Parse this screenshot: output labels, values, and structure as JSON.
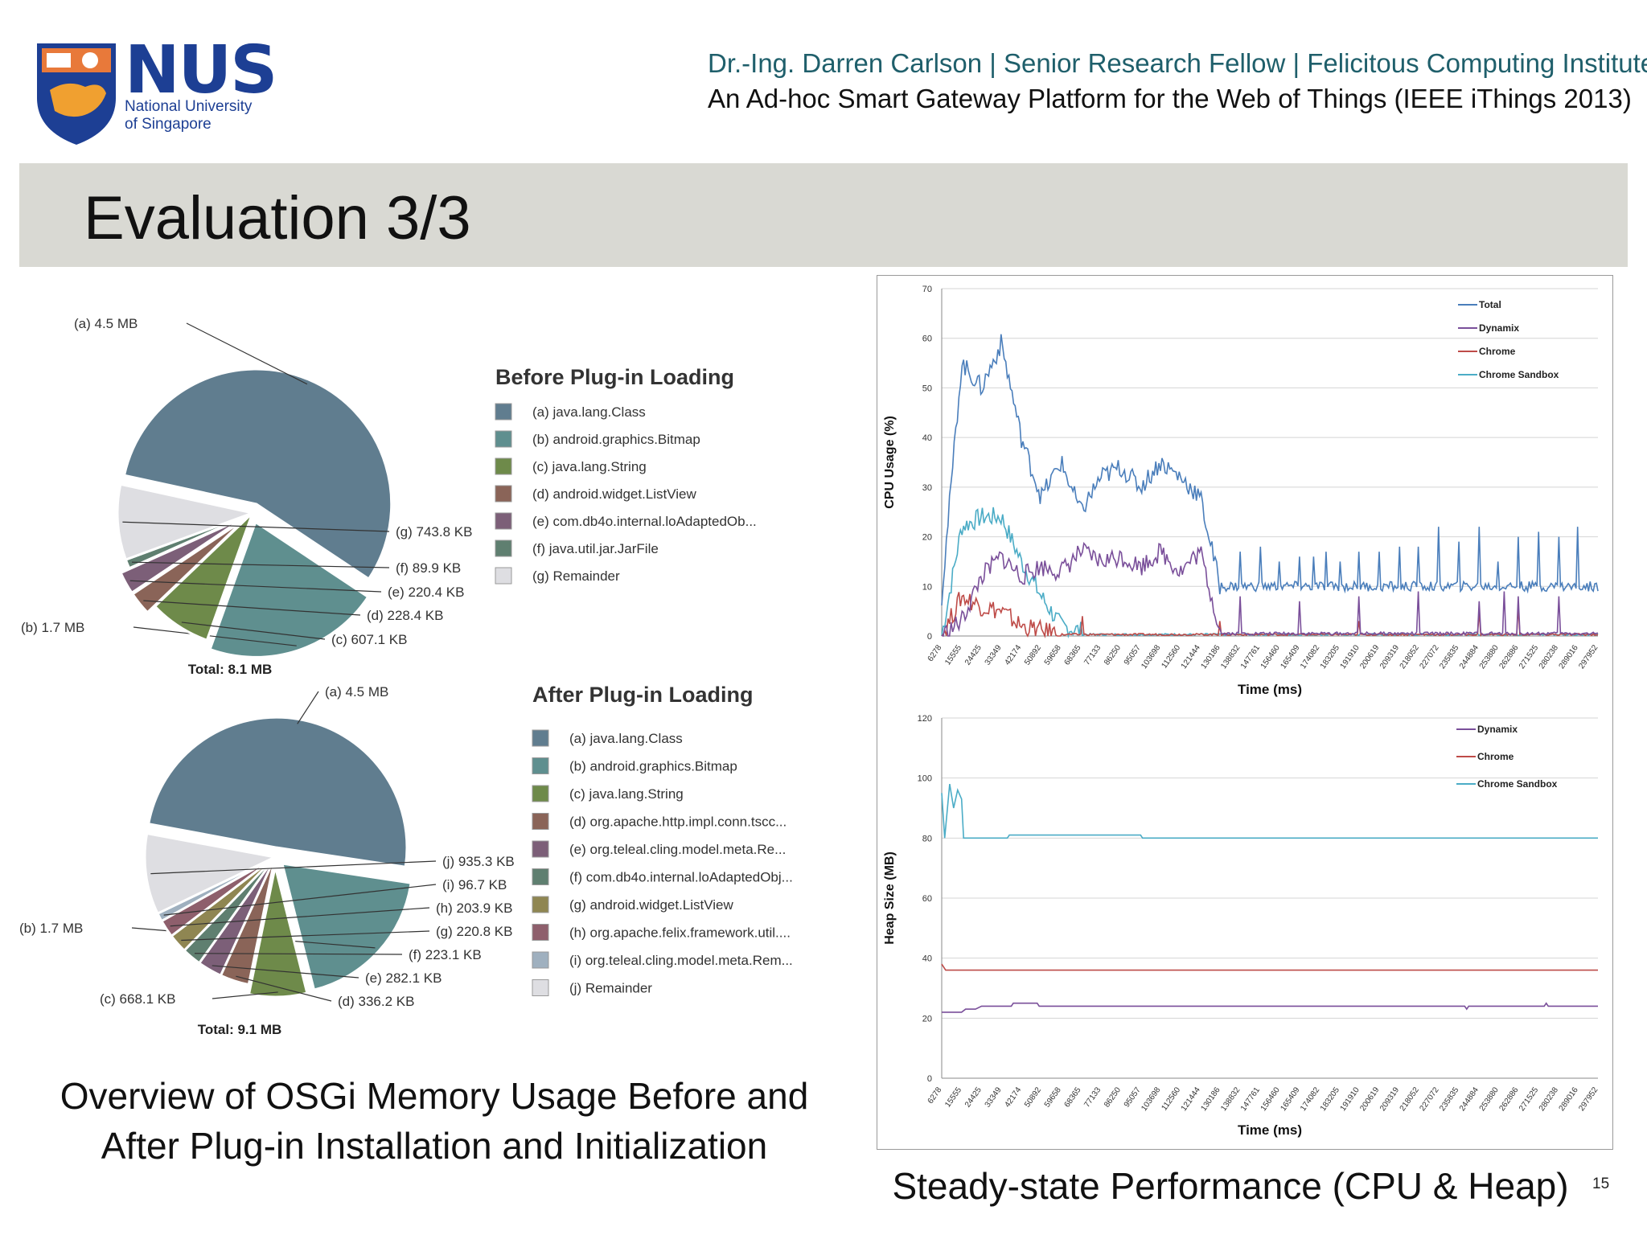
{
  "logo": {
    "short": "NUS",
    "line1": "National University",
    "line2": "of Singapore"
  },
  "header": {
    "line1": "Dr.-Ing. Darren Carlson | Senior Research Fellow | Felicitous Computing Institute",
    "line2": "An Ad-hoc Smart Gateway Platform  for the Web of Things (IEEE iThings 2013)"
  },
  "slide": {
    "title": "Evaluation 3/3",
    "page": "15"
  },
  "captions": {
    "left_line1": "Overview of OSGi Memory Usage Before and",
    "left_line2": "After Plug-in Installation and Initialization",
    "right": "Steady-state Performance (CPU & Heap)"
  },
  "colors": {
    "slice_a": "#607d8f",
    "slice_b": "#5f8f8f",
    "slice_c": "#6e8a4a",
    "slice_d": "#8a6458",
    "slice_e": "#7c5f78",
    "slice_f": "#5f7f70",
    "slice_g_after": "#8f8652",
    "slice_h": "#8e5f6c",
    "slice_i": "#9fb0bf",
    "slice_remainder": "#dedee2",
    "total": "#4a7ebb",
    "dynamix": "#7a4f9a",
    "chrome": "#be4b48",
    "chrome_sandbox": "#4bacc6",
    "title_band": "#d9d9d3",
    "nus_blue": "#1d3f94"
  },
  "chart_data": [
    {
      "type": "pie",
      "title": "Before Plug-in Loading",
      "total_label": "Total: 8.1 MB",
      "legend_labels": [
        "(a)  java.lang.Class",
        "(b)  android.graphics.Bitmap",
        "(c)  java.lang.String",
        "(d)  android.widget.ListView",
        "(e)  com.db4o.internal.loAdaptedOb...",
        "(f)  java.util.jar.JarFile",
        "(g)  Remainder"
      ],
      "slice_labels": [
        "(a)  4.5 MB",
        "(b)  1.7 MB",
        "(c)  607.1 KB",
        "(d)  228.4 KB",
        "(e)  220.4 KB",
        "(f)  89.9 KB",
        "(g)  743.8 KB"
      ],
      "values_kb": [
        4608,
        1741,
        607.1,
        228.4,
        220.4,
        89.9,
        743.8
      ]
    },
    {
      "type": "pie",
      "title": "After Plug-in Loading",
      "total_label": "Total: 9.1 MB",
      "legend_labels": [
        "(a)  java.lang.Class",
        "(b)  android.graphics.Bitmap",
        "(c)  java.lang.String",
        "(d)  org.apache.http.impl.conn.tscc...",
        "(e)  org.teleal.cling.model.meta.Re...",
        "(f)  com.db4o.internal.loAdaptedObj...",
        "(g)  android.widget.ListView",
        "(h)  org.apache.felix.framework.util....",
        "(i)  org.teleal.cling.model.meta.Rem...",
        "(j)  Remainder"
      ],
      "slice_labels": [
        "(a)  4.5 MB",
        "(b)  1.7 MB",
        "(c)  668.1 KB",
        "(d)  336.2 KB",
        "(e)  282.1 KB",
        "(f)  223.1 KB",
        "(g)  220.8 KB",
        "(h)  203.9 KB",
        "(i)  96.7 KB",
        "(j)  935.3 KB"
      ],
      "values_kb": [
        4608,
        1741,
        668.1,
        336.2,
        282.1,
        223.1,
        220.8,
        203.9,
        96.7,
        935.3
      ]
    },
    {
      "type": "line",
      "xlabel": "Time (ms)",
      "ylabel": "CPU Usage (%)",
      "ylim": [
        0,
        70
      ],
      "yticks": [
        0,
        10,
        20,
        30,
        40,
        50,
        60,
        70
      ],
      "x_ticks": [
        "6278",
        "15555",
        "24425",
        "33349",
        "42174",
        "50892",
        "59658",
        "68365",
        "77133",
        "86250",
        "95057",
        "103698",
        "112560",
        "121444",
        "130186",
        "138832",
        "147761",
        "156460",
        "165409",
        "174082",
        "183205",
        "191910",
        "200619",
        "209319",
        "218052",
        "227072",
        "235835",
        "244884",
        "253880",
        "262886",
        "271525",
        "280238",
        "289016",
        "297952"
      ],
      "grid": true,
      "legend_position": "top-right",
      "series": [
        {
          "name": "Total",
          "baseline": 10,
          "noise": 1,
          "initial": [
            [
              0,
              8
            ],
            [
              1,
              55
            ],
            [
              2,
              50
            ],
            [
              3,
              59
            ],
            [
              4,
              40
            ],
            [
              5,
              28
            ],
            [
              6,
              35
            ],
            [
              7,
              25
            ],
            [
              8,
              32
            ],
            [
              9,
              34
            ],
            [
              10,
              30
            ],
            [
              11,
              35
            ],
            [
              12,
              32
            ],
            [
              13,
              28
            ],
            [
              14,
              10
            ]
          ],
          "spikes": [
            [
              2.1,
              19
            ],
            [
              3.1,
              22
            ],
            [
              4.0,
              21
            ],
            [
              5.1,
              16
            ],
            [
              6.1,
              20
            ],
            [
              7.0,
              20
            ],
            [
              8.0,
              18
            ],
            [
              9.1,
              22
            ],
            [
              10.0,
              18
            ],
            [
              11.1,
              18
            ],
            [
              12.0,
              18
            ],
            [
              13.0,
              22
            ],
            [
              14.0,
              18
            ],
            [
              15.0,
              17
            ],
            [
              16.0,
              18
            ],
            [
              17.0,
              15
            ],
            [
              18.0,
              16
            ],
            [
              18.7,
              16
            ],
            [
              19.3,
              17
            ],
            [
              20.0,
              15
            ],
            [
              21.0,
              17
            ],
            [
              22.0,
              17
            ],
            [
              23.0,
              18
            ],
            [
              24.0,
              18
            ],
            [
              25.0,
              22
            ],
            [
              26.0,
              19
            ],
            [
              27.0,
              22
            ],
            [
              28.0,
              15
            ],
            [
              29.0,
              20
            ],
            [
              30.0,
              21
            ],
            [
              31.0,
              20
            ],
            [
              32.0,
              22
            ]
          ]
        },
        {
          "name": "Dynamix",
          "baseline": 0.5,
          "noise": 0.3,
          "initial": [
            [
              0,
              0
            ],
            [
              1,
              3
            ],
            [
              2,
              12
            ],
            [
              3,
              16
            ],
            [
              4,
              12
            ],
            [
              5,
              14
            ],
            [
              6,
              13
            ],
            [
              7,
              17
            ],
            [
              8,
              15
            ],
            [
              9,
              16
            ],
            [
              10,
              14
            ],
            [
              11,
              17
            ],
            [
              12,
              13
            ],
            [
              13,
              17
            ],
            [
              14,
              1
            ]
          ],
          "spikes": [
            [
              3.0,
              8
            ],
            [
              6.0,
              9
            ],
            [
              9.0,
              8
            ],
            [
              12.0,
              9
            ],
            [
              15.0,
              8
            ],
            [
              18.0,
              7
            ],
            [
              21.0,
              8
            ],
            [
              24.0,
              9
            ],
            [
              27.0,
              7
            ],
            [
              28.3,
              9
            ],
            [
              29.0,
              8
            ],
            [
              31.0,
              8
            ]
          ]
        },
        {
          "name": "Chrome",
          "baseline": 0.3,
          "noise": 0.2,
          "initial": [
            [
              0,
              0
            ],
            [
              1,
              8
            ],
            [
              2,
              6
            ],
            [
              3,
              5
            ],
            [
              4,
              2
            ],
            [
              5,
              1
            ],
            [
              6,
              0.5
            ]
          ],
          "spikes": [
            [
              2.5,
              9
            ],
            [
              3.2,
              7
            ],
            [
              7.1,
              4
            ],
            [
              14.0,
              3
            ],
            [
              21.0,
              3
            ],
            [
              27.0,
              5
            ],
            [
              29.0,
              6
            ]
          ]
        },
        {
          "name": "Chrome Sandbox",
          "baseline": 0.3,
          "noise": 0.2,
          "initial": [
            [
              0,
              0
            ],
            [
              1,
              22
            ],
            [
              2,
              24
            ],
            [
              3,
              24
            ],
            [
              4,
              15
            ],
            [
              5,
              8
            ],
            [
              6,
              2
            ],
            [
              7,
              1
            ]
          ],
          "spikes": [
            [
              2.2,
              5
            ],
            [
              4.5,
              3
            ]
          ]
        }
      ]
    },
    {
      "type": "line",
      "xlabel": "Time (ms)",
      "ylabel": "Heap Size (MB)",
      "ylim": [
        0,
        120
      ],
      "yticks": [
        0,
        20,
        40,
        60,
        80,
        100,
        120
      ],
      "x_ticks": [
        "6278",
        "15555",
        "24425",
        "33349",
        "42174",
        "50892",
        "59658",
        "68365",
        "77133",
        "86250",
        "95057",
        "103698",
        "112560",
        "121444",
        "130186",
        "138832",
        "147761",
        "156460",
        "165409",
        "174082",
        "183205",
        "191910",
        "200619",
        "209319",
        "218052",
        "227072",
        "235835",
        "244884",
        "253880",
        "262886",
        "271525",
        "280238",
        "289016",
        "297952"
      ],
      "grid": true,
      "legend_position": "top-right",
      "series": [
        {
          "name": "Dynamix",
          "points": [
            [
              0,
              22
            ],
            [
              1.0,
              22
            ],
            [
              1.2,
              23
            ],
            [
              1.7,
              23
            ],
            [
              2.0,
              24
            ],
            [
              3.5,
              24
            ],
            [
              3.6,
              25
            ],
            [
              4.8,
              25
            ],
            [
              4.9,
              24
            ],
            [
              26.3,
              24
            ],
            [
              26.4,
              23
            ],
            [
              26.5,
              24
            ],
            [
              30.3,
              24
            ],
            [
              30.4,
              25
            ],
            [
              30.5,
              24
            ],
            [
              33,
              24
            ]
          ]
        },
        {
          "name": "Chrome",
          "points": [
            [
              0,
              38
            ],
            [
              0.2,
              36
            ],
            [
              33,
              36
            ]
          ]
        },
        {
          "name": "Chrome Sandbox",
          "points": [
            [
              0,
              95
            ],
            [
              0.15,
              80
            ],
            [
              0.4,
              98
            ],
            [
              0.6,
              90
            ],
            [
              0.8,
              96
            ],
            [
              1.0,
              93
            ],
            [
              1.1,
              80
            ],
            [
              3.3,
              80
            ],
            [
              3.4,
              81
            ],
            [
              10.0,
              81
            ],
            [
              10.1,
              80
            ],
            [
              33,
              80
            ]
          ]
        }
      ]
    }
  ]
}
